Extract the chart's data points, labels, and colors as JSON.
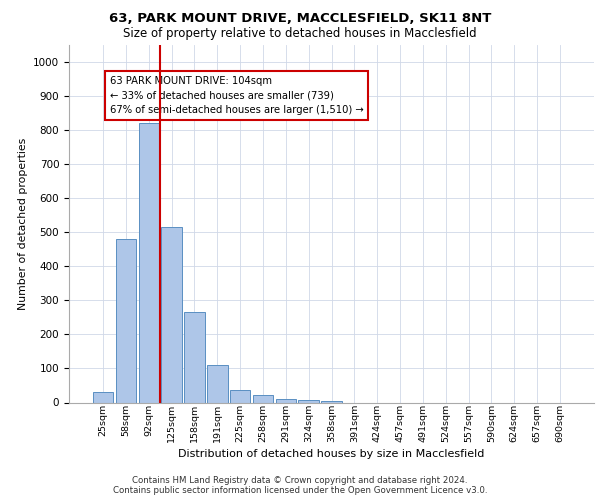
{
  "title_line1": "63, PARK MOUNT DRIVE, MACCLESFIELD, SK11 8NT",
  "title_line2": "Size of property relative to detached houses in Macclesfield",
  "xlabel": "Distribution of detached houses by size in Macclesfield",
  "ylabel": "Number of detached properties",
  "bar_labels": [
    "25sqm",
    "58sqm",
    "92sqm",
    "125sqm",
    "158sqm",
    "191sqm",
    "225sqm",
    "258sqm",
    "291sqm",
    "324sqm",
    "358sqm",
    "391sqm",
    "424sqm",
    "457sqm",
    "491sqm",
    "524sqm",
    "557sqm",
    "590sqm",
    "624sqm",
    "657sqm",
    "690sqm"
  ],
  "bar_values": [
    30,
    480,
    820,
    515,
    265,
    110,
    37,
    22,
    10,
    8,
    3,
    0,
    0,
    0,
    0,
    0,
    0,
    0,
    0,
    0,
    0
  ],
  "bar_color": "#aec6e8",
  "bar_edge_color": "#5a8fc2",
  "property_line_x": 2.5,
  "property_line_color": "#cc0000",
  "annotation_text": "63 PARK MOUNT DRIVE: 104sqm\n← 33% of detached houses are smaller (739)\n67% of semi-detached houses are larger (1,510) →",
  "annotation_box_color": "#ffffff",
  "annotation_box_edge_color": "#cc0000",
  "ylim": [
    0,
    1050
  ],
  "yticks": [
    0,
    100,
    200,
    300,
    400,
    500,
    600,
    700,
    800,
    900,
    1000
  ],
  "grid_color": "#d0d8e8",
  "background_color": "#ffffff",
  "footer_line1": "Contains HM Land Registry data © Crown copyright and database right 2024.",
  "footer_line2": "Contains public sector information licensed under the Open Government Licence v3.0."
}
